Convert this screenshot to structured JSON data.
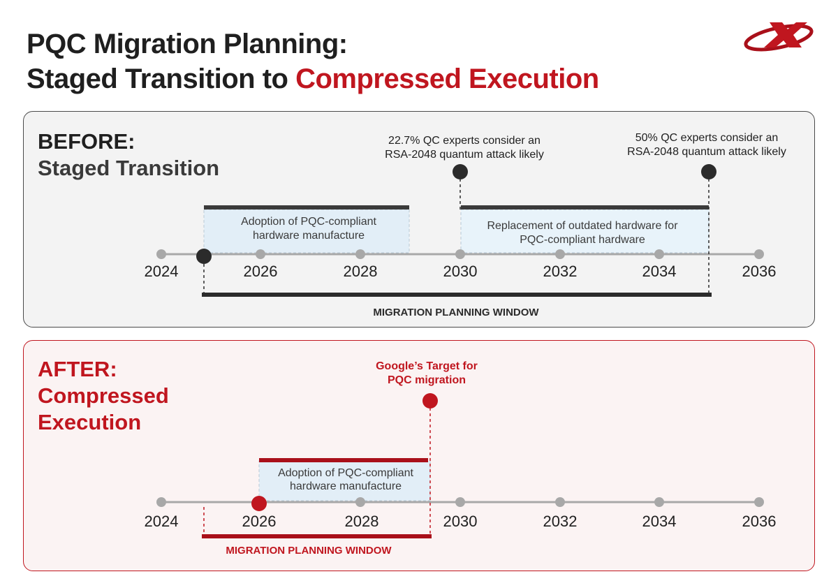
{
  "title": {
    "line1": "PQC Migration Planning:",
    "line2_prefix": "Staged Transition to",
    "line2_accent": "Compressed Execution"
  },
  "colors": {
    "accent": "#c0161f",
    "dark": "#2b2b2b",
    "box_fill": "#e2eef7",
    "axis": "#a8a8a8"
  },
  "before": {
    "heading1": "BEFORE:",
    "heading2": "Staged Transition",
    "years": [
      "2024",
      "2026",
      "2028",
      "2030",
      "2032",
      "2034",
      "2036"
    ],
    "box1": {
      "line1": "Adoption of PQC-compliant",
      "line2": "hardware manufacture",
      "start": 2025,
      "end": 2029
    },
    "box2": {
      "line1": "Replacement of outdated hardware for",
      "line2": "PQC-compliant hardware",
      "start": 2030,
      "end": 2035
    },
    "marker1": {
      "year": 2030,
      "line1": "22.7% QC experts consider an",
      "line2": "RSA-2048 quantum attack likely"
    },
    "marker2": {
      "year": 2035,
      "line1": "50% QC experts consider an",
      "line2": "RSA-2048 quantum attack likely"
    },
    "start_marker_year": 2025,
    "window": {
      "label": "MIGRATION PLANNING WINDOW",
      "start": 2025,
      "end": 2035
    }
  },
  "after": {
    "heading1": "AFTER:",
    "heading2": "Compressed",
    "heading3": "Execution",
    "years": [
      "2024",
      "2026",
      "2028",
      "2030",
      "2032",
      "2034",
      "2036"
    ],
    "box1": {
      "line1": "Adoption of PQC-compliant",
      "line2": "hardware manufacture",
      "start": 2026,
      "end": 2029.4
    },
    "target": {
      "year": 2029.4,
      "line1": "Google’s Target for",
      "line2": "PQC migration"
    },
    "start_marker_year": 2026,
    "window": {
      "label": "MIGRATION PLANNING WINDOW",
      "start": 2025,
      "end": 2029.4
    }
  }
}
